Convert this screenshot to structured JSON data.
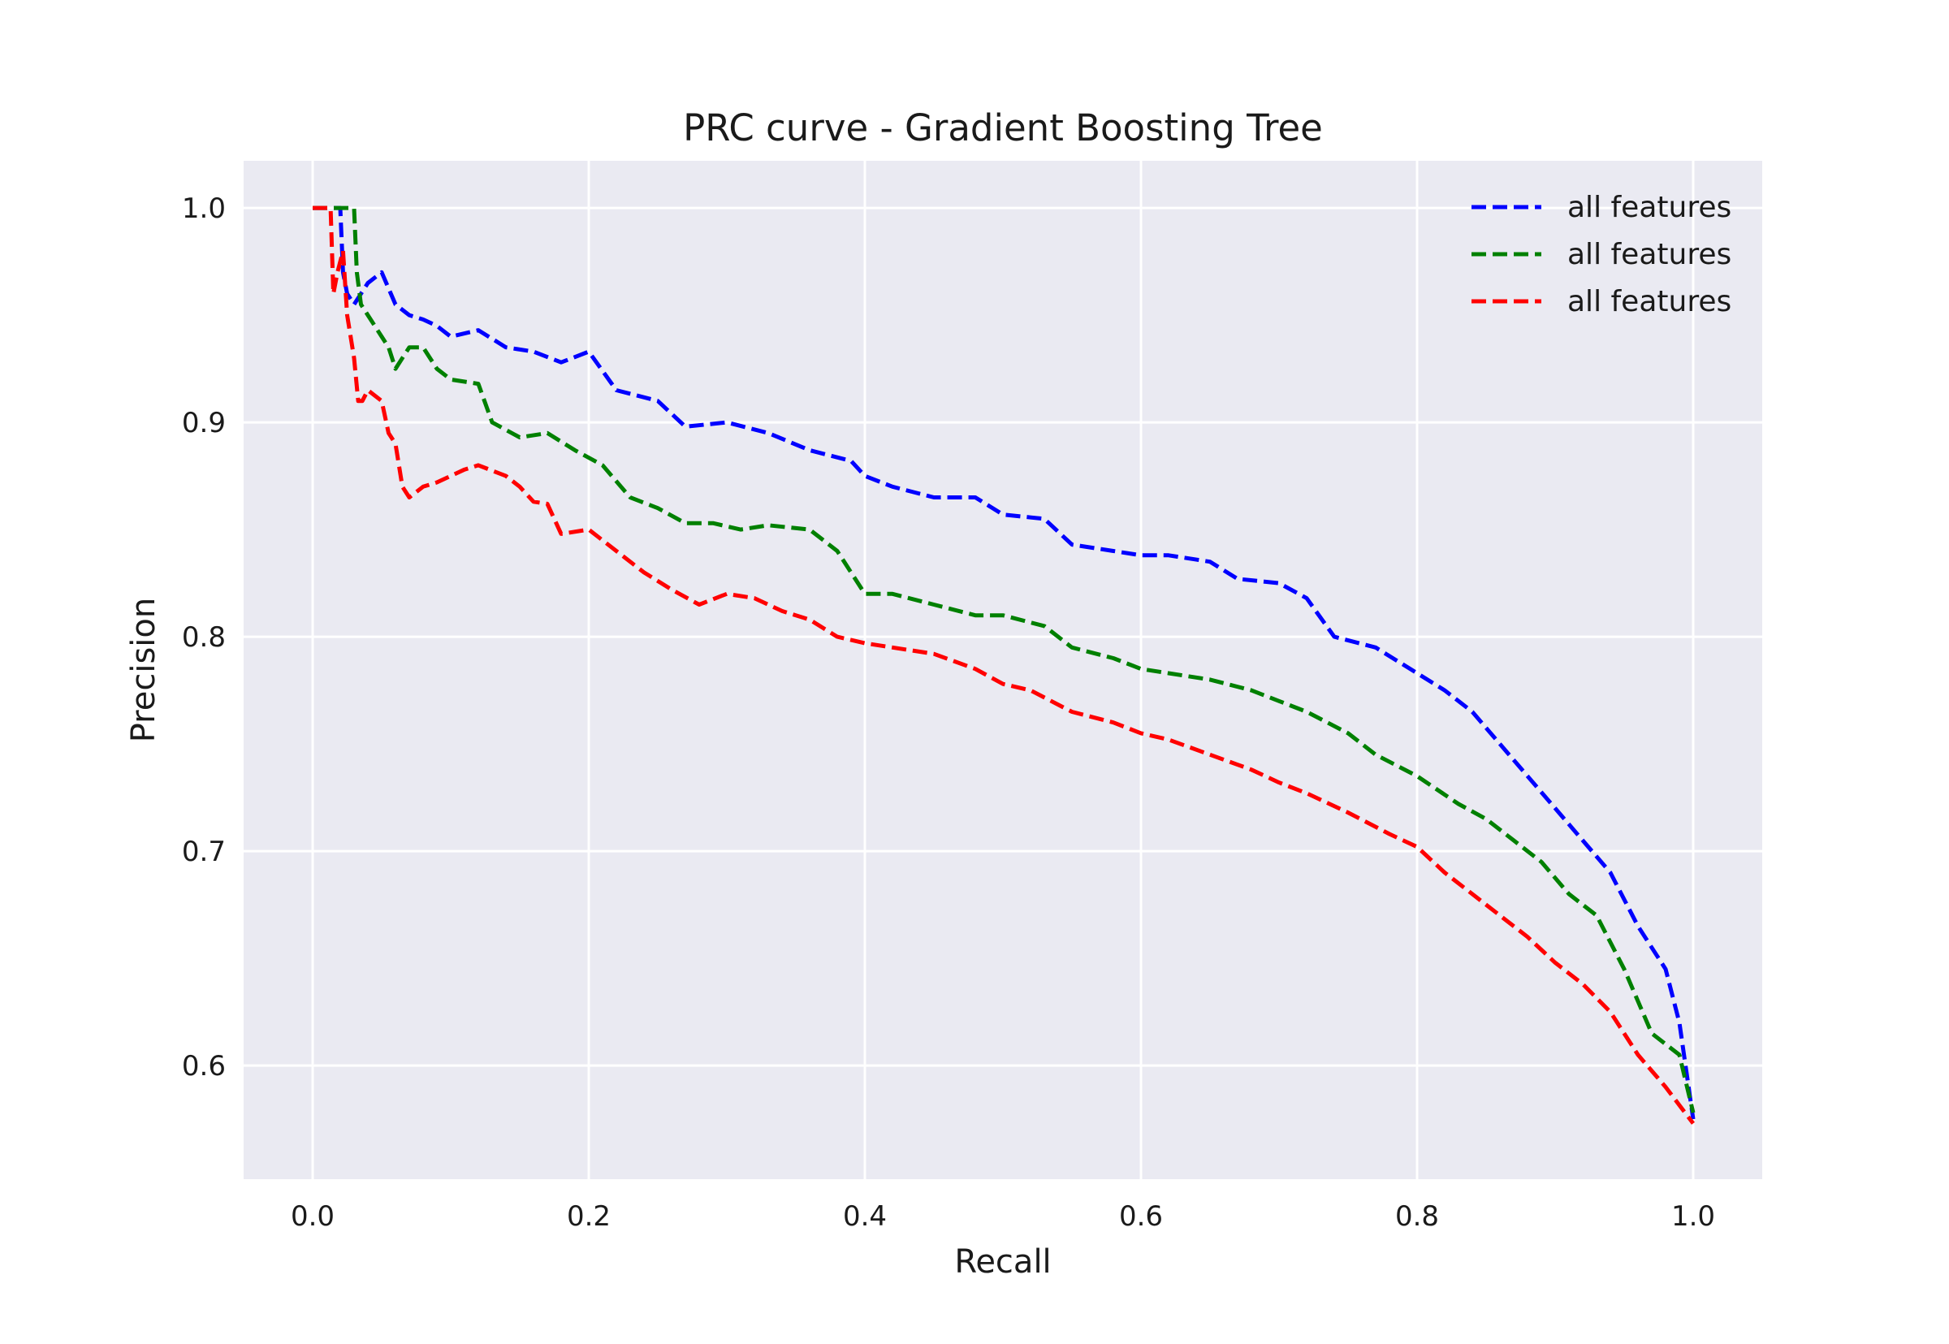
{
  "chart_data": {
    "type": "line",
    "title": "PRC curve - Gradient Boosting Tree",
    "xlabel": "Recall",
    "ylabel": "Precision",
    "xlim": [
      -0.05,
      1.05
    ],
    "ylim": [
      0.547,
      1.022
    ],
    "xticks": [
      0.0,
      0.2,
      0.4,
      0.6,
      0.8,
      1.0
    ],
    "xtick_labels": [
      "0.0",
      "0.2",
      "0.4",
      "0.6",
      "0.8",
      "1.0"
    ],
    "yticks": [
      0.6,
      0.7,
      0.8,
      0.9,
      1.0
    ],
    "ytick_labels": [
      "0.6",
      "0.7",
      "0.8",
      "0.9",
      "1.0"
    ],
    "grid": true,
    "legend_position": "top-right",
    "line_style": "dashed",
    "background": "#eaeaf2",
    "series": [
      {
        "name": "all features",
        "color": "#0000ff",
        "x": [
          0.0,
          0.02,
          0.022,
          0.025,
          0.03,
          0.035,
          0.04,
          0.05,
          0.06,
          0.07,
          0.08,
          0.09,
          0.1,
          0.12,
          0.14,
          0.16,
          0.18,
          0.2,
          0.22,
          0.25,
          0.27,
          0.3,
          0.33,
          0.36,
          0.39,
          0.4,
          0.42,
          0.45,
          0.48,
          0.5,
          0.53,
          0.55,
          0.58,
          0.6,
          0.62,
          0.65,
          0.67,
          0.7,
          0.72,
          0.74,
          0.77,
          0.8,
          0.82,
          0.84,
          0.86,
          0.88,
          0.9,
          0.92,
          0.94,
          0.96,
          0.98,
          0.99,
          1.0
        ],
        "y": [
          1.0,
          1.0,
          0.97,
          0.96,
          0.955,
          0.96,
          0.965,
          0.97,
          0.955,
          0.95,
          0.948,
          0.945,
          0.94,
          0.943,
          0.935,
          0.933,
          0.928,
          0.933,
          0.915,
          0.91,
          0.898,
          0.9,
          0.895,
          0.887,
          0.882,
          0.875,
          0.87,
          0.865,
          0.865,
          0.857,
          0.855,
          0.843,
          0.84,
          0.838,
          0.838,
          0.835,
          0.827,
          0.825,
          0.818,
          0.8,
          0.795,
          0.783,
          0.775,
          0.765,
          0.75,
          0.735,
          0.72,
          0.705,
          0.69,
          0.665,
          0.645,
          0.62,
          0.575
        ]
      },
      {
        "name": "all features",
        "color": "#008000",
        "x": [
          0.0,
          0.03,
          0.032,
          0.035,
          0.04,
          0.05,
          0.055,
          0.06,
          0.07,
          0.08,
          0.09,
          0.1,
          0.12,
          0.13,
          0.15,
          0.17,
          0.19,
          0.21,
          0.23,
          0.25,
          0.27,
          0.29,
          0.31,
          0.33,
          0.36,
          0.38,
          0.4,
          0.42,
          0.45,
          0.48,
          0.5,
          0.53,
          0.55,
          0.58,
          0.6,
          0.62,
          0.65,
          0.68,
          0.7,
          0.72,
          0.75,
          0.77,
          0.8,
          0.83,
          0.85,
          0.87,
          0.89,
          0.91,
          0.93,
          0.95,
          0.97,
          0.99,
          1.0
        ],
        "y": [
          1.0,
          1.0,
          0.97,
          0.955,
          0.95,
          0.94,
          0.935,
          0.925,
          0.935,
          0.935,
          0.925,
          0.92,
          0.918,
          0.9,
          0.893,
          0.895,
          0.887,
          0.88,
          0.865,
          0.86,
          0.853,
          0.853,
          0.85,
          0.852,
          0.85,
          0.84,
          0.82,
          0.82,
          0.815,
          0.81,
          0.81,
          0.805,
          0.795,
          0.79,
          0.785,
          0.783,
          0.78,
          0.775,
          0.77,
          0.765,
          0.755,
          0.745,
          0.735,
          0.722,
          0.715,
          0.705,
          0.695,
          0.68,
          0.67,
          0.645,
          0.615,
          0.605,
          0.578
        ]
      },
      {
        "name": "all features",
        "color": "#ff0000",
        "x": [
          0.0,
          0.013,
          0.015,
          0.018,
          0.022,
          0.025,
          0.03,
          0.033,
          0.036,
          0.04,
          0.05,
          0.055,
          0.06,
          0.065,
          0.07,
          0.08,
          0.09,
          0.1,
          0.11,
          0.12,
          0.14,
          0.15,
          0.16,
          0.17,
          0.18,
          0.2,
          0.22,
          0.24,
          0.26,
          0.28,
          0.3,
          0.32,
          0.34,
          0.36,
          0.38,
          0.4,
          0.42,
          0.45,
          0.48,
          0.5,
          0.52,
          0.55,
          0.58,
          0.6,
          0.62,
          0.65,
          0.68,
          0.7,
          0.72,
          0.75,
          0.78,
          0.8,
          0.82,
          0.85,
          0.88,
          0.9,
          0.92,
          0.94,
          0.96,
          0.98,
          1.0
        ],
        "y": [
          1.0,
          1.0,
          0.96,
          0.97,
          0.98,
          0.95,
          0.93,
          0.91,
          0.91,
          0.915,
          0.91,
          0.895,
          0.89,
          0.87,
          0.865,
          0.87,
          0.872,
          0.875,
          0.878,
          0.88,
          0.875,
          0.87,
          0.863,
          0.862,
          0.848,
          0.85,
          0.84,
          0.83,
          0.822,
          0.815,
          0.82,
          0.818,
          0.812,
          0.808,
          0.8,
          0.797,
          0.795,
          0.792,
          0.785,
          0.778,
          0.775,
          0.765,
          0.76,
          0.755,
          0.752,
          0.745,
          0.738,
          0.732,
          0.727,
          0.718,
          0.708,
          0.702,
          0.69,
          0.675,
          0.66,
          0.648,
          0.638,
          0.625,
          0.605,
          0.59,
          0.573
        ]
      }
    ]
  }
}
